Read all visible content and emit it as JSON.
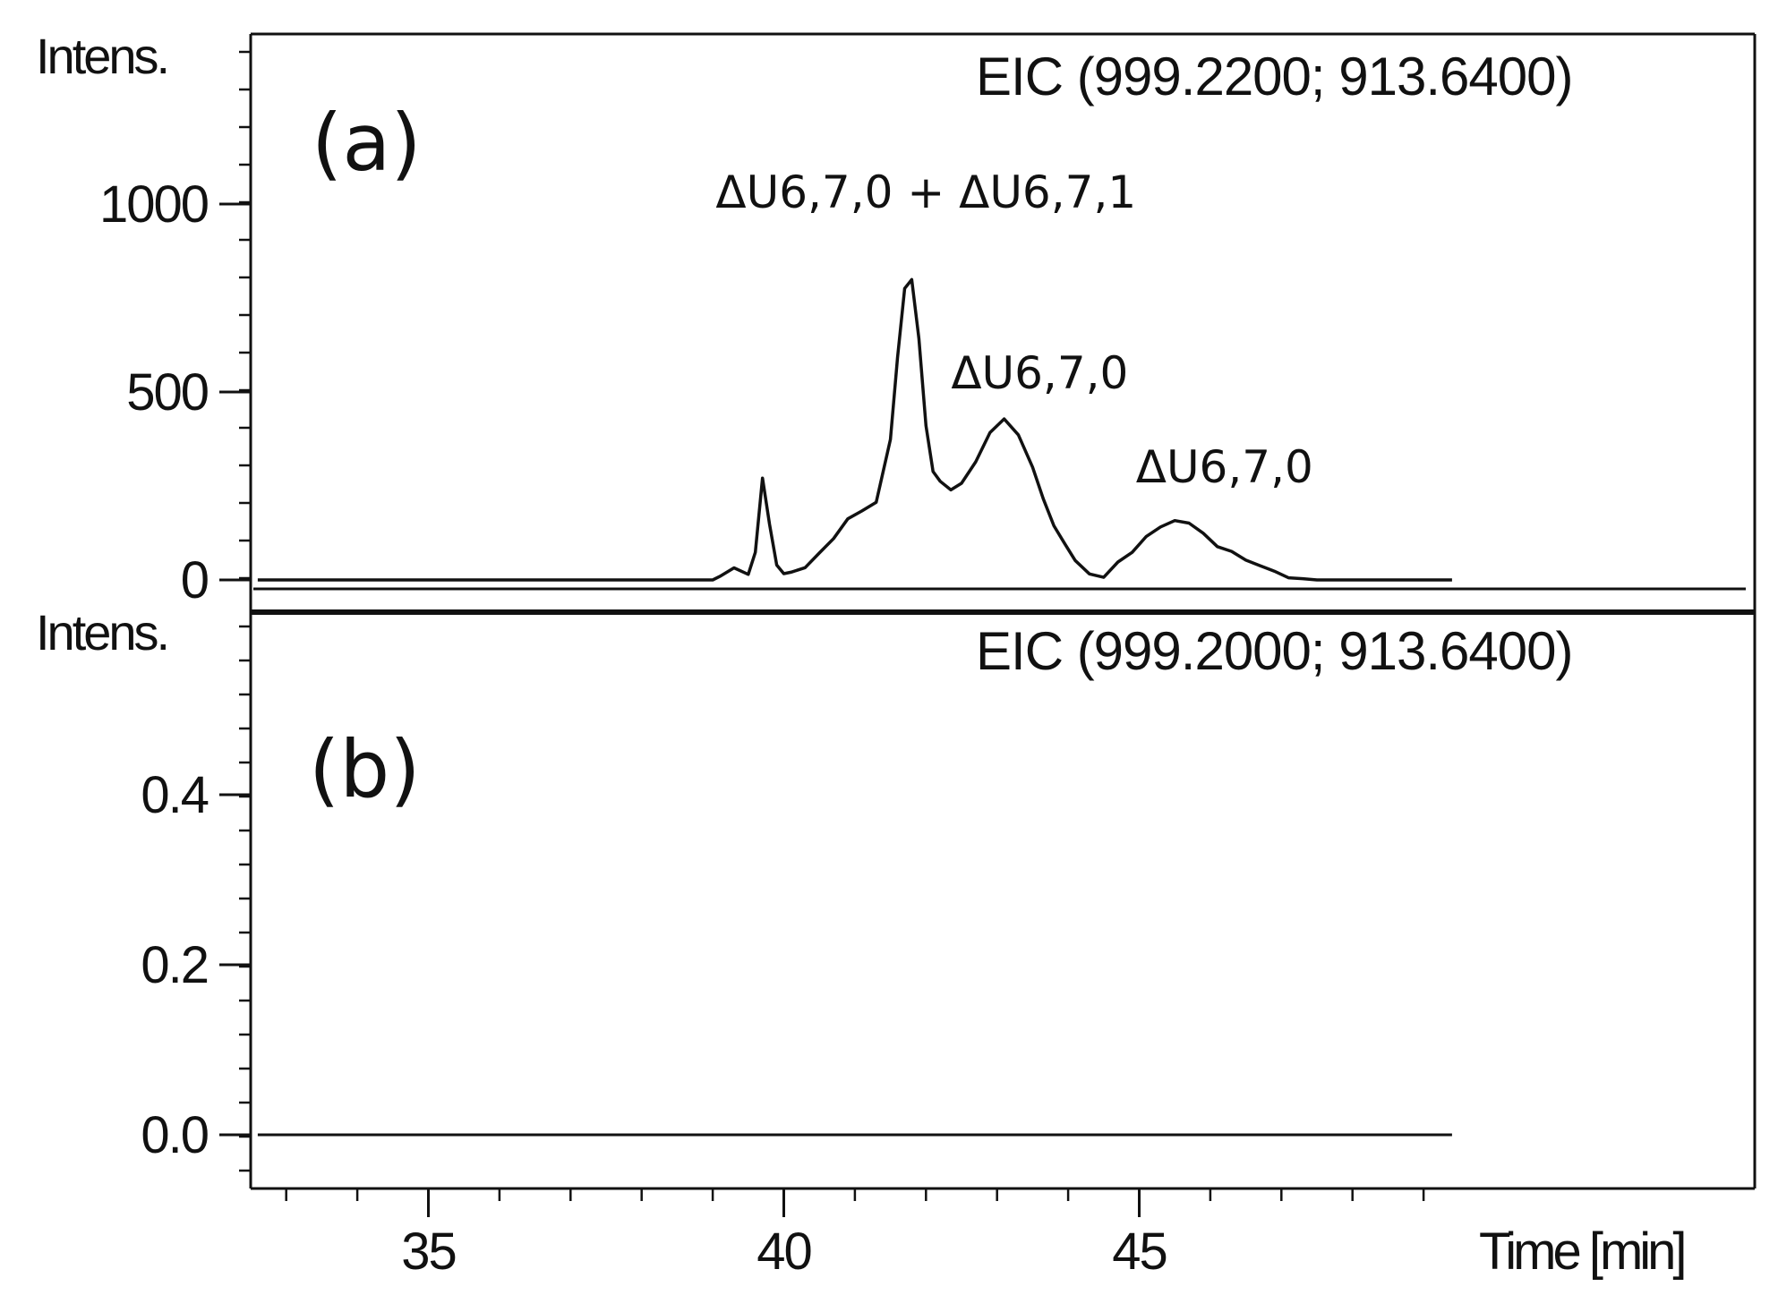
{
  "chart_data": [
    {
      "type": "line",
      "panel_label": "(a)",
      "ylabel": "Intens.",
      "legend": "EIC (999.2200; 913.6400)",
      "ylim": [
        -50,
        1480
      ],
      "xlim": [
        32.5,
        49.5
      ],
      "yticks": [
        0,
        500,
        1000
      ],
      "ytick_labels": [
        "0",
        "500",
        "1000"
      ],
      "annotations": [
        {
          "text": "ΔU6,7,0 + ΔU6,7,1",
          "x": 42.0,
          "y": 990
        },
        {
          "text": "ΔU6,7,0",
          "x": 43.6,
          "y": 510
        },
        {
          "text": "ΔU6,7,0",
          "x": 46.2,
          "y": 260
        }
      ],
      "series": [
        {
          "x": [
            32.6,
            39.0,
            39.1,
            39.3,
            39.5,
            39.6,
            39.7,
            39.8,
            39.9,
            40.0,
            40.1,
            40.3,
            40.5,
            40.7,
            40.9,
            41.1,
            41.3,
            41.5,
            41.6,
            41.7,
            41.8,
            41.9,
            42.0,
            42.1,
            42.2,
            42.35,
            42.5,
            42.7,
            42.9,
            43.1,
            43.3,
            43.5,
            43.65,
            43.8,
            43.95,
            44.1,
            44.3,
            44.5,
            44.7,
            44.9,
            45.1,
            45.3,
            45.5,
            45.7,
            45.9,
            46.1,
            46.3,
            46.5,
            46.7,
            46.9,
            47.1,
            47.3,
            47.5,
            49.4
          ],
          "y": [
            0,
            0,
            10,
            40,
            20,
            80,
            280,
            150,
            30,
            10,
            20,
            30,
            60,
            110,
            160,
            190,
            220,
            380,
            600,
            780,
            810,
            650,
            420,
            280,
            250,
            230,
            250,
            300,
            380,
            420,
            400,
            310,
            220,
            150,
            100,
            60,
            30,
            20,
            40,
            70,
            110,
            140,
            150,
            140,
            120,
            100,
            80,
            60,
            40,
            25,
            10,
            5,
            0,
            0
          ]
        }
      ]
    },
    {
      "type": "line",
      "panel_label": "(b)",
      "ylabel": "Intens.",
      "legend": "EIC (999.2000; 913.6400)",
      "ylim": [
        -0.1,
        0.58
      ],
      "xlim": [
        32.5,
        49.5
      ],
      "yticks": [
        0.0,
        0.2,
        0.4
      ],
      "ytick_labels": [
        "0.0",
        "0.2",
        "0.4"
      ],
      "xlabel": "Time [min]",
      "xticks": [
        35,
        40,
        45
      ],
      "xtick_labels": [
        "35",
        "40",
        "45"
      ],
      "series": [
        {
          "x": [
            32.6,
            49.4
          ],
          "y": [
            0.0,
            0.0
          ]
        }
      ]
    }
  ]
}
